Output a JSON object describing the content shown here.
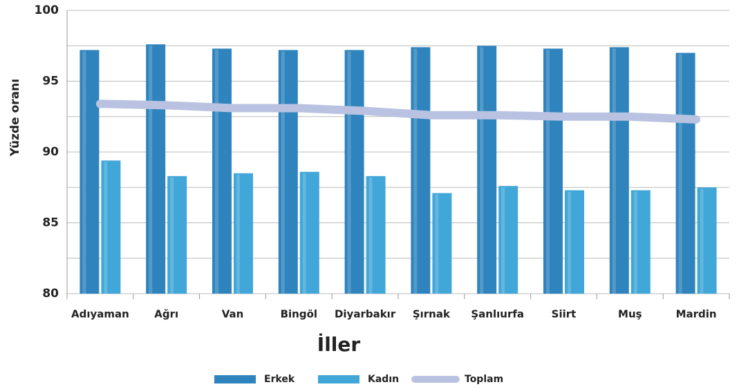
{
  "chart_data": {
    "type": "bar",
    "x_label": "İller",
    "y_label": "Yüzde oranı",
    "categories": [
      "Adıyaman",
      "Ağrı",
      "Van",
      "Bingöl",
      "Diyarbakır",
      "Şırnak",
      "Şanlıurfa",
      "Siirt",
      "Muş",
      "Mardin"
    ],
    "series": [
      {
        "name": "Erkek",
        "color": "#2f84bd",
        "type": "bar",
        "values": [
          97.2,
          97.6,
          97.3,
          97.2,
          97.2,
          97.4,
          97.5,
          97.3,
          97.4,
          97.0
        ]
      },
      {
        "name": "Kadın",
        "color": "#41a6d8",
        "type": "bar",
        "values": [
          89.4,
          88.3,
          88.5,
          88.6,
          88.3,
          87.1,
          87.6,
          87.3,
          87.3,
          87.5
        ]
      },
      {
        "name": "Toplam",
        "color": "#b9c3e1",
        "type": "line",
        "values": [
          93.4,
          93.3,
          93.1,
          93.1,
          92.9,
          92.6,
          92.6,
          92.5,
          92.5,
          92.3
        ]
      }
    ],
    "ylim": [
      80,
      100
    ],
    "yticks": [
      80,
      85,
      90,
      95,
      100
    ],
    "minor_yticks": [
      82.5,
      87.5,
      92.5,
      97.5
    ],
    "grid": true,
    "legend": "bottom"
  }
}
